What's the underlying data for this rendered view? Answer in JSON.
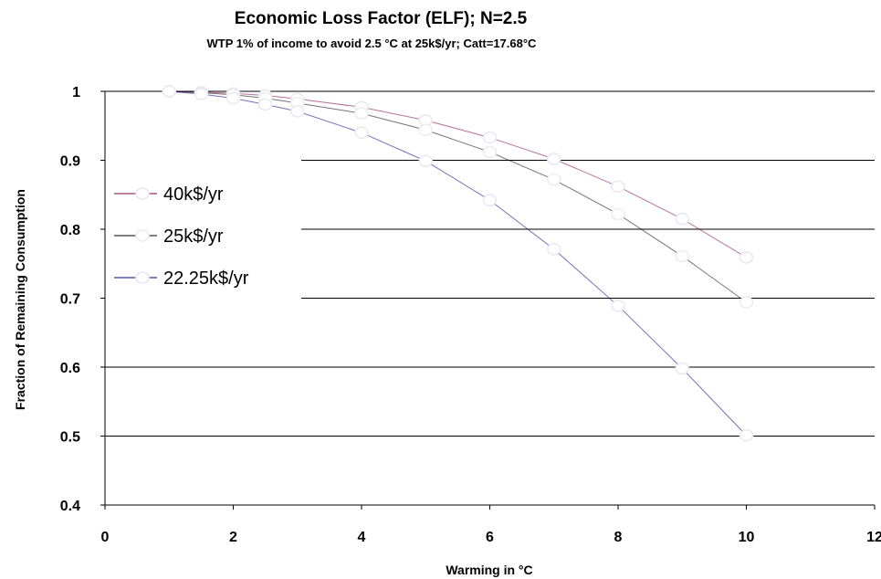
{
  "chart_data": {
    "type": "line",
    "title": "Economic Loss Factor (ELF);  N=2.5",
    "subtitle": "WTP 1% of income to avoid 2.5 °C at 25k$/yr; Catt=17.68°C",
    "xlabel": "Warming in °C",
    "ylabel": "Fraction of Remaining Consumption",
    "xlim": [
      0,
      12
    ],
    "ylim": [
      0.4,
      1.0
    ],
    "xticks": [
      "0",
      "2",
      "4",
      "6",
      "8",
      "10",
      "12"
    ],
    "yticks": [
      "0.4",
      "0.5",
      "0.6",
      "0.7",
      "0.8",
      "0.9",
      "1"
    ],
    "grid": "horizontal",
    "legend_position": "left",
    "x": [
      1,
      1.5,
      2,
      2.5,
      3,
      4,
      5,
      6,
      7,
      8,
      9,
      10
    ],
    "series": [
      {
        "name": "40k$/yr",
        "color": "#e6e6f7",
        "line_color": "#800040",
        "values": [
          1.0,
          0.999,
          0.997,
          0.994,
          0.989,
          0.977,
          0.958,
          0.933,
          0.902,
          0.862,
          0.815,
          0.759
        ]
      },
      {
        "name": "25k$/yr",
        "color": "#ececec",
        "line_color": "#000000",
        "values": [
          1.0,
          0.998,
          0.995,
          0.99,
          0.983,
          0.968,
          0.944,
          0.912,
          0.872,
          0.822,
          0.761,
          0.694
        ]
      },
      {
        "name": "22.25k$/yr",
        "color": "#e8e8f0",
        "line_color": "#000080",
        "values": [
          1.0,
          0.996,
          0.99,
          0.981,
          0.971,
          0.94,
          0.899,
          0.842,
          0.771,
          0.689,
          0.598,
          0.501
        ]
      }
    ]
  }
}
